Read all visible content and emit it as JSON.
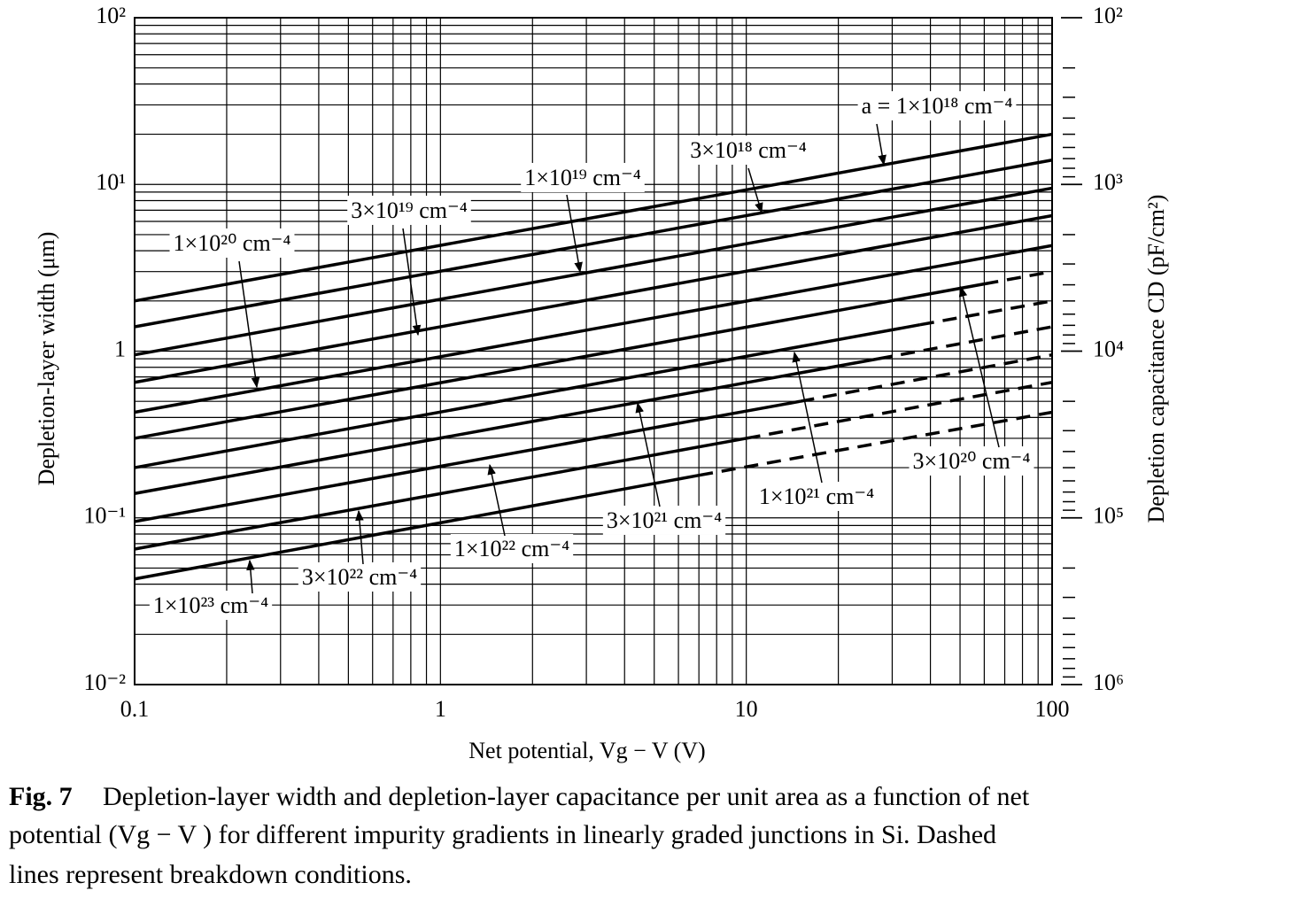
{
  "chart_data": {
    "type": "line",
    "log_x": true,
    "log_y": true,
    "grid": true,
    "xlabel": "Net potential, Vg − V (V)",
    "ylabel": "Depletion-layer width (μm)",
    "y2label": "Depletion capacitance CD (pF/cm²)",
    "xlim": [
      0.1,
      100
    ],
    "xticks": [
      0.1,
      1,
      10,
      100
    ],
    "ylim": [
      0.01,
      100
    ],
    "yticks": [
      {
        "value": 0.01,
        "label": "10⁻²"
      },
      {
        "value": 0.1,
        "label": "10⁻¹"
      },
      1,
      {
        "value": 10,
        "label": "10¹"
      },
      {
        "value": 100,
        "label": "10²"
      }
    ],
    "y2lim": [
      1000000,
      100
    ],
    "y2ticks": [
      {
        "value": 100,
        "label": "10²"
      },
      {
        "value": 1000,
        "label": "10³"
      },
      {
        "value": 10000,
        "label": "10⁴"
      },
      {
        "value": 100000,
        "label": "10⁵"
      },
      {
        "value": 1000000,
        "label": "10⁶"
      }
    ],
    "series": [
      {
        "name": "a = 1×10¹⁸ cm⁻⁴",
        "color": "#000000",
        "x": [
          0.1,
          100
        ],
        "values": [
          2.0,
          20
        ]
      },
      {
        "name": "3×10¹⁸ cm⁻⁴",
        "color": "#000000",
        "x": [
          0.1,
          100
        ],
        "values": [
          1.4,
          14
        ]
      },
      {
        "name": "1×10¹⁹ cm⁻⁴",
        "color": "#000000",
        "x": [
          0.1,
          100
        ],
        "values": [
          0.95,
          9.5
        ]
      },
      {
        "name": "3×10¹⁹ cm⁻⁴",
        "color": "#000000",
        "x": [
          0.1,
          100
        ],
        "values": [
          0.65,
          6.5
        ]
      },
      {
        "name": "1×10²⁰ cm⁻⁴",
        "color": "#000000",
        "x": [
          0.1,
          90,
          100
        ],
        "values": [
          0.43,
          4.15,
          null
        ],
        "breakdown_values": [
          null,
          4.15,
          4.3
        ]
      },
      {
        "name": "3×10²⁰ cm⁻⁴",
        "color": "#000000",
        "x": [
          0.1,
          60,
          100
        ],
        "values": [
          0.3,
          2.53,
          null
        ],
        "breakdown_values": [
          null,
          2.53,
          3.0
        ]
      },
      {
        "name": "1×10²¹ cm⁻⁴",
        "color": "#000000",
        "x": [
          0.1,
          37,
          100
        ],
        "values": [
          0.2,
          1.44,
          null
        ],
        "breakdown_values": [
          null,
          1.44,
          2.0
        ]
      },
      {
        "name": "3×10²¹ cm⁻⁴",
        "color": "#000000",
        "x": [
          0.1,
          27,
          100
        ],
        "values": [
          0.14,
          0.9,
          null
        ],
        "breakdown_values": [
          null,
          0.9,
          1.4
        ]
      },
      {
        "name": "1×10²² cm⁻⁴",
        "color": "#000000",
        "x": [
          0.1,
          15,
          100
        ],
        "values": [
          0.095,
          0.5,
          null
        ],
        "breakdown_values": [
          null,
          0.5,
          0.95
        ]
      },
      {
        "name": "3×10²² cm⁻⁴",
        "color": "#000000",
        "x": [
          0.1,
          10,
          100
        ],
        "values": [
          0.065,
          0.3,
          null
        ],
        "breakdown_values": [
          null,
          0.3,
          0.65
        ]
      },
      {
        "name": "1×10²³ cm⁻⁴",
        "color": "#000000",
        "x": [
          0.1,
          7,
          100
        ],
        "values": [
          0.043,
          0.18,
          null
        ],
        "breakdown_values": [
          null,
          0.18,
          0.43
        ]
      }
    ],
    "caption": {
      "label": "Fig. 7",
      "lines": [
        "Depletion-layer width and depletion-layer capacitance per unit area as a function of net",
        "potential (Vg − V ) for different impurity gradients in linearly graded junctions in Si. Dashed",
        "lines represent breakdown conditions."
      ]
    }
  }
}
